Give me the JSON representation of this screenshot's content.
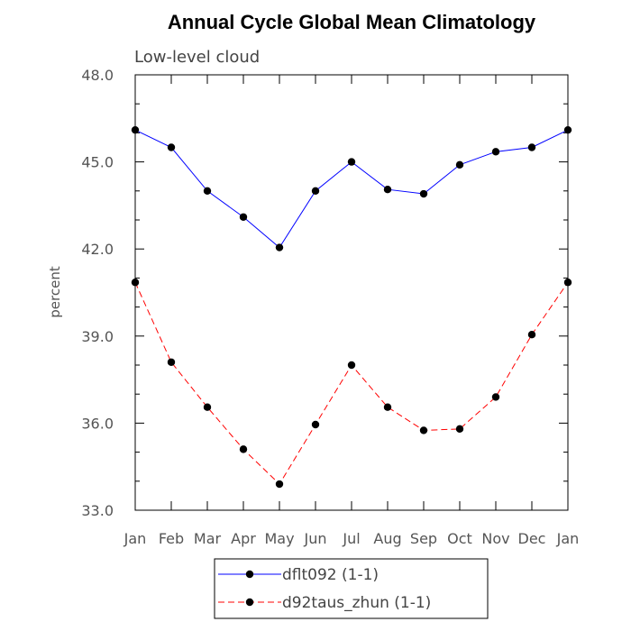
{
  "chart_data": {
    "type": "line",
    "title": "Annual Cycle Global Mean Climatology",
    "subtitle": "Low-level cloud",
    "xlabel": "",
    "ylabel": "percent",
    "categories": [
      "Jan",
      "Feb",
      "Mar",
      "Apr",
      "May",
      "Jun",
      "Jul",
      "Aug",
      "Sep",
      "Oct",
      "Nov",
      "Dec",
      "Jan"
    ],
    "ylim": [
      33.0,
      48.0
    ],
    "yticks": [
      "33.0",
      "36.0",
      "39.0",
      "42.0",
      "45.0",
      "48.0"
    ],
    "ytick_values": [
      33.0,
      36.0,
      39.0,
      42.0,
      45.0,
      48.0
    ],
    "minor_step": 1.0,
    "grid": false,
    "legend_position": "bottom-center",
    "series": [
      {
        "name": "dflt092 (1-1)",
        "color": "#0000ff",
        "dash": "solid",
        "marker": "filled-circle",
        "values": [
          46.1,
          45.5,
          44.0,
          43.1,
          42.05,
          44.0,
          45.0,
          44.05,
          43.9,
          44.9,
          45.35,
          45.5,
          46.1
        ]
      },
      {
        "name": "d92taus_zhun (1-1)",
        "color": "#ff0000",
        "dash": "dashed",
        "marker": "filled-circle",
        "values": [
          40.85,
          38.1,
          36.55,
          35.1,
          33.9,
          35.95,
          38.0,
          36.55,
          35.75,
          35.8,
          36.9,
          39.05,
          40.85
        ]
      }
    ]
  }
}
